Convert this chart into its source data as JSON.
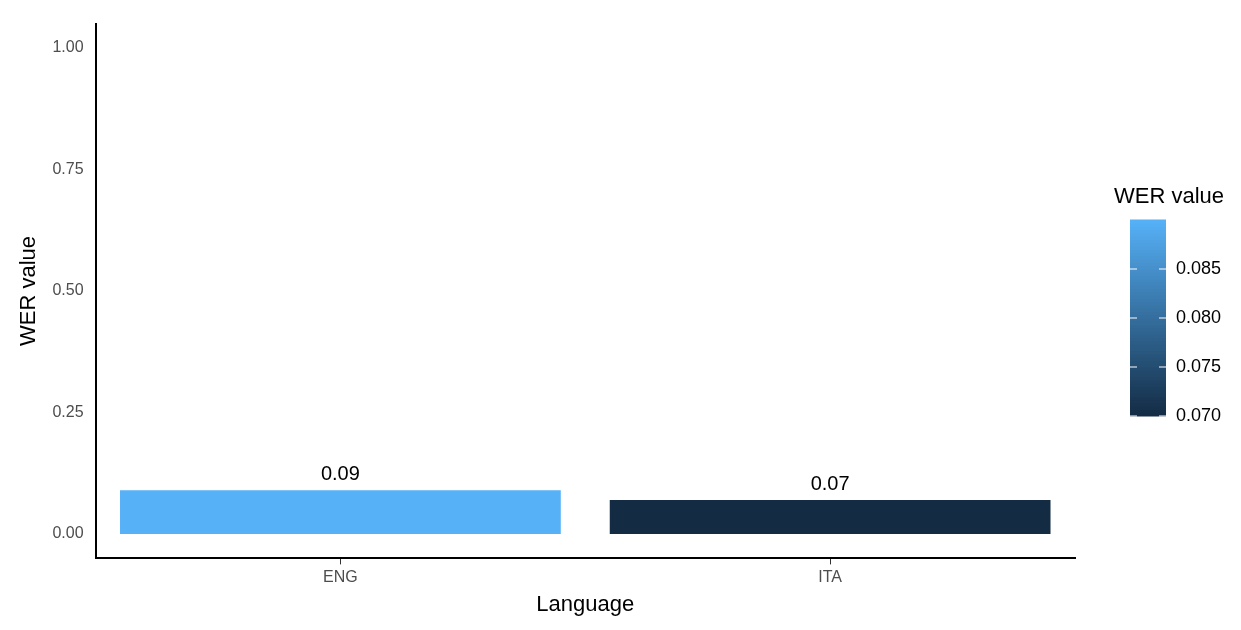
{
  "chart_data": {
    "type": "bar",
    "xlabel": "Language",
    "ylabel": "WER value",
    "clabel": "WER value",
    "categories": [
      "ENG",
      "ITA"
    ],
    "values": [
      0.09,
      0.07
    ],
    "colors": [
      "#56b1f7",
      "#132b43"
    ],
    "data_labels": true,
    "ylim": [
      -0.05,
      1.05
    ],
    "yticks": [
      {
        "value": 0,
        "label": "0.00"
      },
      {
        "value": 0.25,
        "label": "0.25"
      },
      {
        "value": 0.5,
        "label": "0.50"
      },
      {
        "value": 0.75,
        "label": "0.75"
      },
      {
        "value": 1,
        "label": "1.00"
      }
    ],
    "clim": [
      0.07,
      0.09
    ],
    "cticks": [
      {
        "value": 0.07,
        "label": "0.070"
      },
      {
        "value": 0.075,
        "label": "0.075"
      },
      {
        "value": 0.08,
        "label": "0.080"
      },
      {
        "value": 0.085,
        "label": "0.085"
      }
    ],
    "grid": false,
    "legend": false
  }
}
